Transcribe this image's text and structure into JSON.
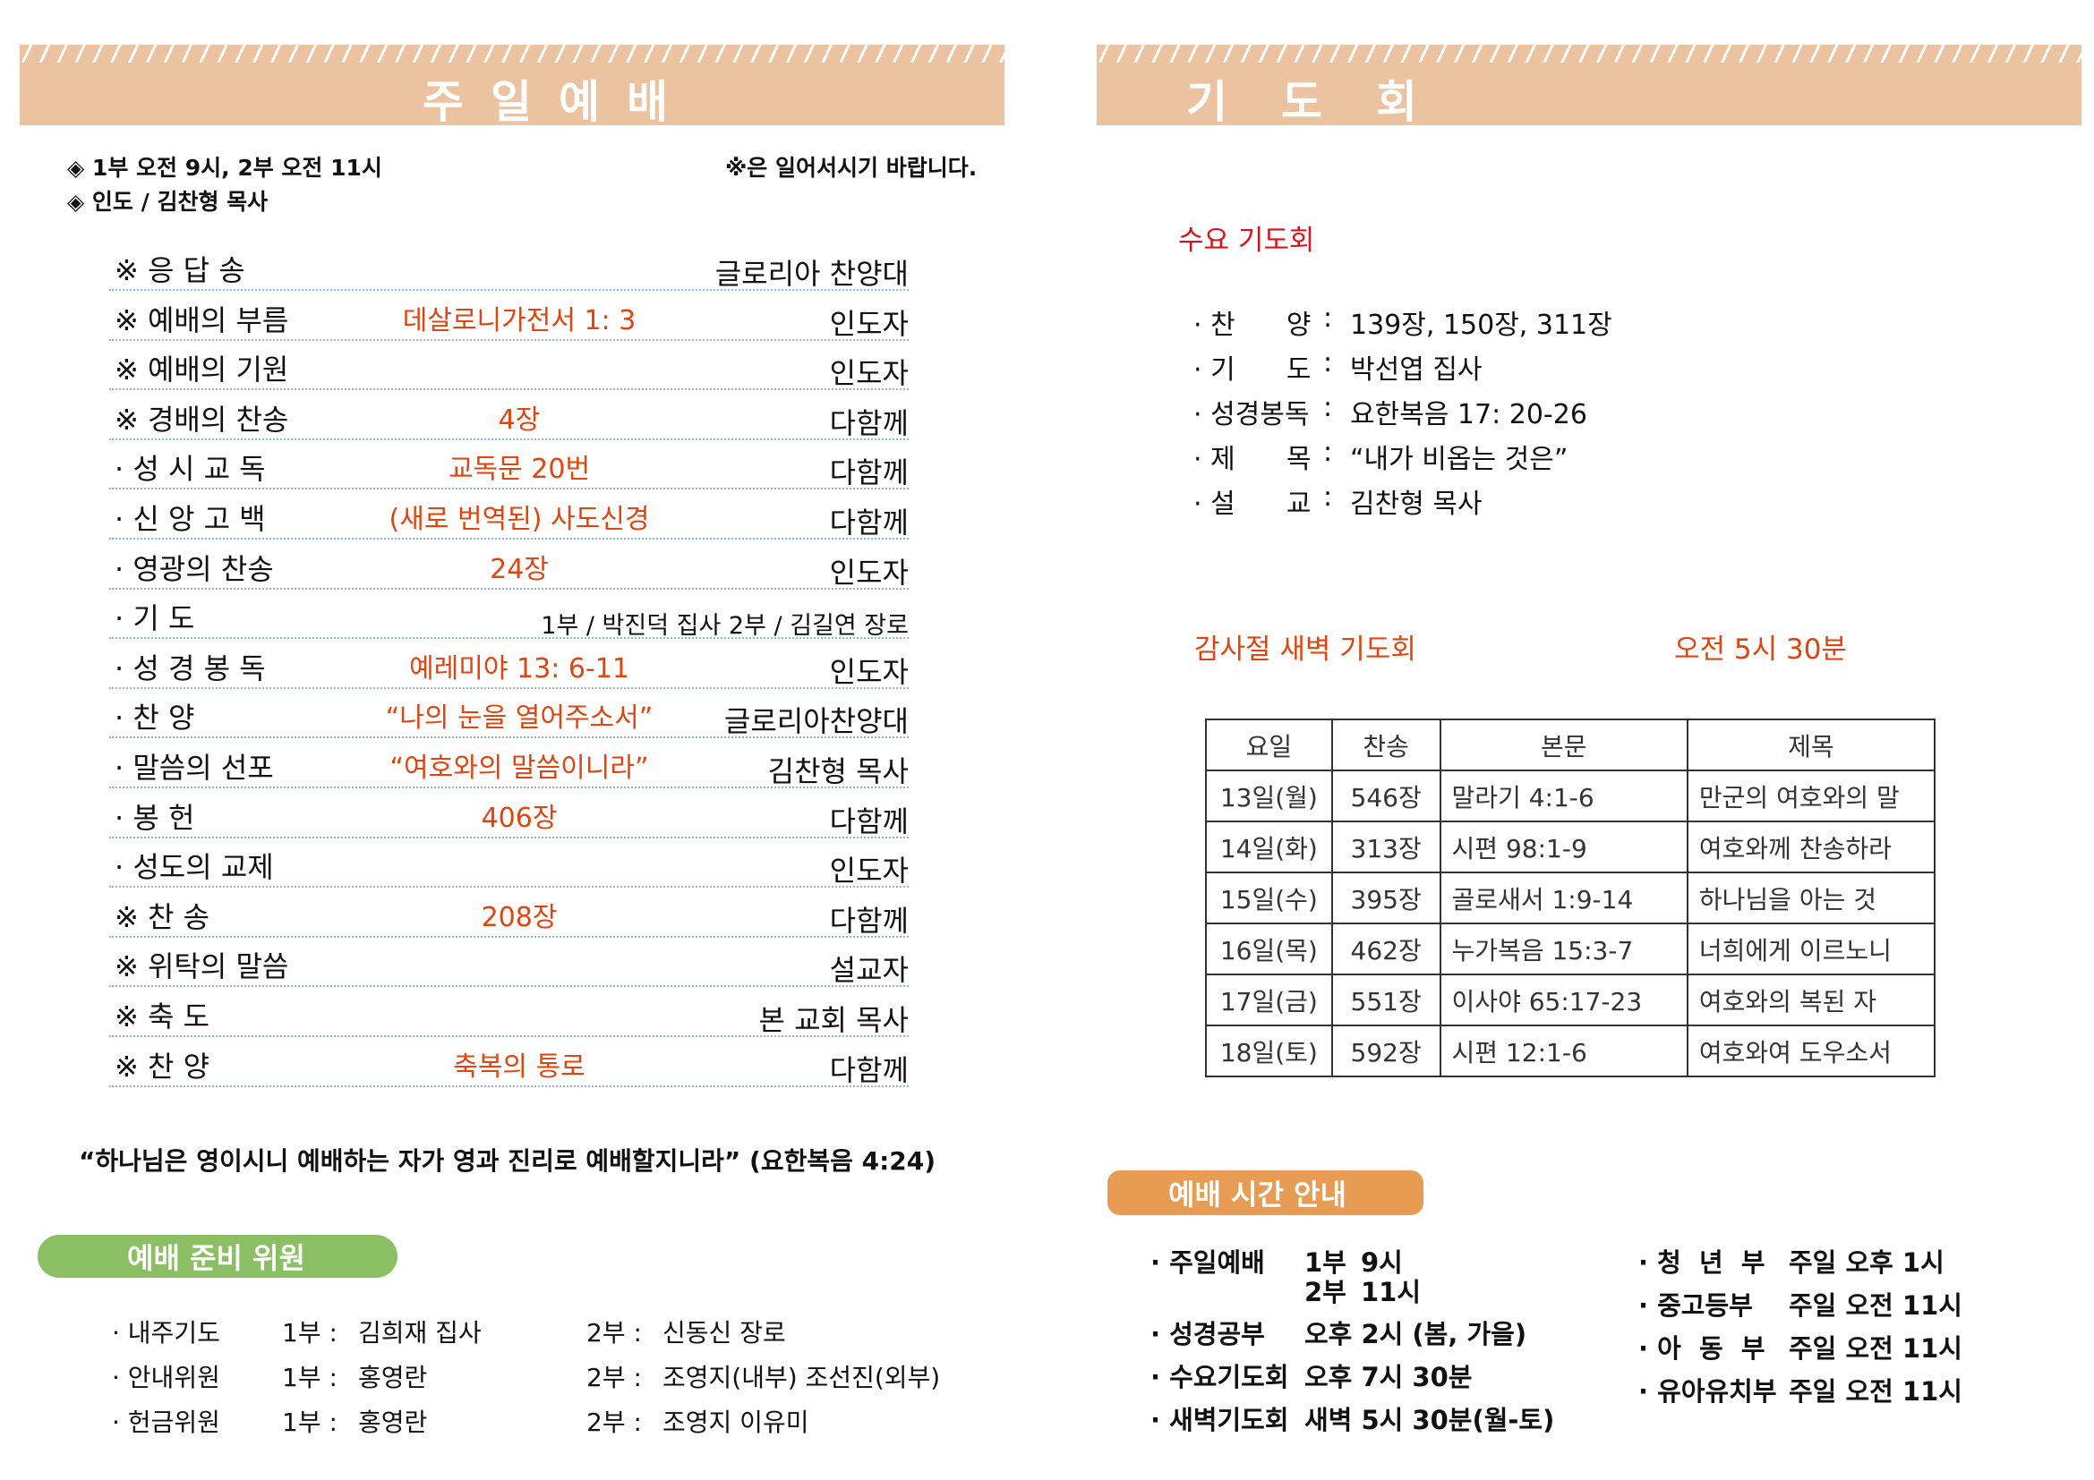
{
  "left": {
    "banner_title": "주일예배",
    "info": [
      "◈ 1부 오전 9시, 2부 오전 11시",
      "◈ 인도 / 김찬형 목사"
    ],
    "stand_note": "※은 일어서시기 바랍니다.",
    "order": [
      {
        "label": "※ 응 답 송",
        "middle": "",
        "right": "글로리아 찬양대"
      },
      {
        "label": "※ 예배의 부름",
        "middle": "데살로니가전서 1: 3",
        "right": "인도자"
      },
      {
        "label": "※ 예배의 기원",
        "middle": "",
        "right": "인도자"
      },
      {
        "label": "※ 경배의 찬송",
        "middle": "4장",
        "right": "다함께"
      },
      {
        "label": "· 성 시 교 독",
        "middle": "교독문 20번",
        "right": "다함께"
      },
      {
        "label": "· 신 앙 고 백",
        "middle": "(새로 번역된) 사도신경",
        "right": "다함께"
      },
      {
        "label": "· 영광의 찬송",
        "middle": "24장",
        "right": "인도자"
      },
      {
        "label": "· 기  도",
        "middle": "",
        "right": "1부 / 박진덕 집사   2부 / 김길연 장로"
      },
      {
        "label": "· 성 경 봉 독",
        "middle": "예레미야 13: 6-11",
        "right": "인도자"
      },
      {
        "label": "· 찬  양",
        "middle": "“나의 눈을 열어주소서”",
        "right": "글로리아찬양대"
      },
      {
        "label": "· 말씀의 선포",
        "middle": "“여호와의 말씀이니라”",
        "right": "김찬형 목사"
      },
      {
        "label": "· 봉 헌",
        "middle": "406장",
        "right": "다함께"
      },
      {
        "label": "· 성도의 교제",
        "middle": "",
        "right": "인도자"
      },
      {
        "label": "※ 찬  송",
        "middle": "208장",
        "right": "다함께"
      },
      {
        "label": "※ 위탁의 말씀",
        "middle": "",
        "right": "설교자"
      },
      {
        "label": "※ 축  도",
        "middle": "",
        "right": "본 교회 목사"
      },
      {
        "label": "※ 찬  양",
        "middle": "축복의 통로",
        "right": "다함께"
      }
    ],
    "quote": "“하나님은 영이시니 예배하는 자가 영과 진리로 예배할지니라” (요한복음 4:24)",
    "committee_title": "예배 준비 위원",
    "committee": [
      {
        "label": "· 내주기도",
        "p1": "1부 :",
        "n1": "김희재 집사",
        "p2": "2부 :",
        "n2": "신동신 장로"
      },
      {
        "label": "· 안내위원",
        "p1": "1부 :",
        "n1": "홍영란",
        "p2": "2부 :",
        "n2": "조영지(내부)  조선진(외부)"
      },
      {
        "label": "· 헌금위원",
        "p1": "1부 :",
        "n1": "홍영란",
        "p2": "2부 :",
        "n2": "조영지 이유미"
      }
    ]
  },
  "right": {
    "banner_title": "기도회",
    "wed_title": "수요 기도회",
    "wed_items": [
      {
        "label": "· 찬      양",
        "value": "139장, 150장, 311장"
      },
      {
        "label": "· 기      도",
        "value": "박선엽 집사"
      },
      {
        "label": "· 성경봉독",
        "value": "요한복음 17: 20-26"
      },
      {
        "label": "· 제      목",
        "value": "“내가 비옵는 것은”"
      },
      {
        "label": "· 설      교",
        "value": "김찬형 목사"
      }
    ],
    "dawn_title": "감사절 새벽 기도회",
    "dawn_time": "오전 5시 30분",
    "table_headers": [
      "요일",
      "찬송",
      "본문",
      "제목"
    ],
    "table_rows": [
      [
        "13일(월)",
        "546장",
        "말라기 4:1-6",
        "만군의 여호와의 말"
      ],
      [
        "14일(화)",
        "313장",
        "시편 98:1-9",
        "여호와께 찬송하라"
      ],
      [
        "15일(수)",
        "395장",
        "골로새서 1:9-14",
        "하나님을 아는 것"
      ],
      [
        "16일(목)",
        "462장",
        "누가복음 15:3-7",
        "너희에게 이르노니"
      ],
      [
        "17일(금)",
        "551장",
        "이사야 65:17-23",
        "여호와의 복된 자"
      ],
      [
        "18일(토)",
        "592장",
        "시편 12:1-6",
        "여호와여 도우소서"
      ]
    ],
    "schedule_title": "예배 시간 안내",
    "schedule_left": [
      {
        "label": "· 주일예배",
        "value": "",
        "extra": [
          {
            "p": "1부",
            "t": "9시"
          },
          {
            "p": "2부",
            "t": "11시"
          }
        ]
      },
      {
        "label": "· 성경공부",
        "value": "오후 2시 (봄, 가을)"
      },
      {
        "label": "· 수요기도회",
        "value": "오후 7시 30분"
      },
      {
        "label": "· 새벽기도회",
        "value": "새벽 5시 30분(월-토)"
      }
    ],
    "schedule_right": [
      {
        "label": "· 청  년  부",
        "value": "주일 오후 1시"
      },
      {
        "label": "· 중고등부",
        "value": "주일 오전 11시"
      },
      {
        "label": "· 아  동  부",
        "value": "주일 오전 11시"
      },
      {
        "label": "· 유아유치부",
        "value": "주일 오전 11시"
      }
    ]
  },
  "colors": {
    "banner": "#ecc3a0",
    "accent_orange": "#e0450f",
    "green_pill": "#8abf63",
    "orange_pill": "#e89b52",
    "red_title": "#d9121b"
  }
}
